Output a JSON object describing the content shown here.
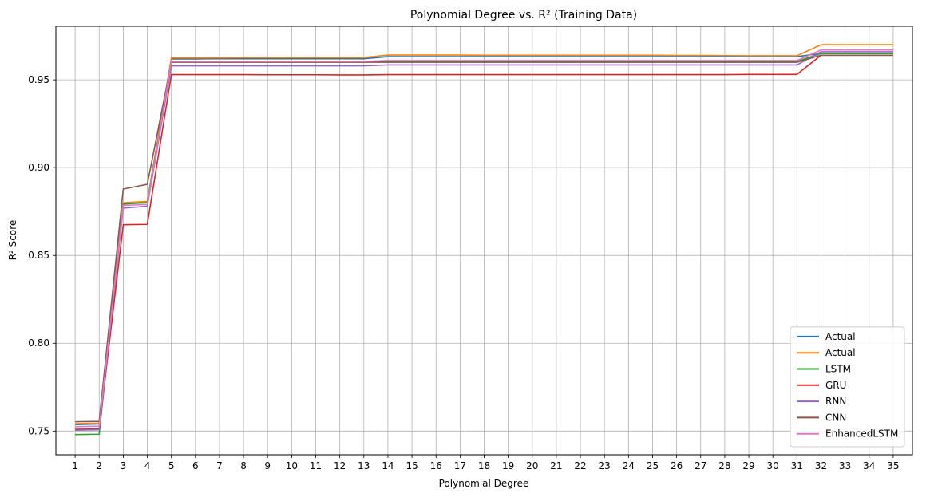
{
  "chart_data": {
    "type": "line",
    "title": "Polynomial Degree vs. R² (Training Data)",
    "xlabel": "Polynomial Degree",
    "ylabel": "R² Score",
    "x": [
      1,
      2,
      3,
      4,
      5,
      6,
      7,
      8,
      9,
      10,
      11,
      12,
      13,
      14,
      15,
      16,
      17,
      18,
      19,
      20,
      21,
      22,
      23,
      24,
      25,
      26,
      27,
      28,
      29,
      30,
      31,
      32,
      33,
      34,
      35
    ],
    "xlim": [
      0.2,
      35.8
    ],
    "ylim": [
      0.7365,
      0.9805
    ],
    "yticks": [
      0.75,
      0.8,
      0.85,
      0.9,
      0.95
    ],
    "ytick_labels": [
      "0.75",
      "0.80",
      "0.85",
      "0.90",
      "0.95"
    ],
    "grid": true,
    "legend_position": "lower-right",
    "series": [
      {
        "name": "Actual",
        "color": "#1f77b4",
        "values": [
          0.7537,
          0.754,
          0.8795,
          0.8802,
          0.9619,
          0.9619,
          0.962,
          0.962,
          0.962,
          0.962,
          0.962,
          0.962,
          0.962,
          0.9632,
          0.9632,
          0.9632,
          0.9632,
          0.9632,
          0.9632,
          0.9632,
          0.9632,
          0.9632,
          0.9632,
          0.9632,
          0.9632,
          0.9632,
          0.9632,
          0.9632,
          0.9632,
          0.9632,
          0.9632,
          0.965,
          0.965,
          0.965,
          0.965
        ]
      },
      {
        "name": "Actual",
        "color": "#ff7f0e",
        "values": [
          0.7542,
          0.7545,
          0.88,
          0.8808,
          0.9625,
          0.9625,
          0.9626,
          0.9627,
          0.9627,
          0.9627,
          0.9627,
          0.9627,
          0.9627,
          0.9641,
          0.9641,
          0.9641,
          0.9641,
          0.964,
          0.964,
          0.964,
          0.964,
          0.964,
          0.964,
          0.964,
          0.964,
          0.9639,
          0.9639,
          0.9638,
          0.9637,
          0.9637,
          0.9637,
          0.97,
          0.97,
          0.97,
          0.97
        ]
      },
      {
        "name": "LSTM",
        "color": "#2ca02c",
        "values": [
          0.748,
          0.7482,
          0.8793,
          0.88,
          0.9605,
          0.9605,
          0.9605,
          0.9605,
          0.9605,
          0.9605,
          0.9605,
          0.9605,
          0.9605,
          0.9605,
          0.9605,
          0.9605,
          0.9605,
          0.9605,
          0.9605,
          0.9605,
          0.9605,
          0.9605,
          0.9605,
          0.9605,
          0.9605,
          0.9605,
          0.9605,
          0.9605,
          0.9605,
          0.9605,
          0.9605,
          0.965,
          0.965,
          0.965,
          0.965
        ]
      },
      {
        "name": "GRU",
        "color": "#d62728",
        "values": [
          0.751,
          0.7512,
          0.8675,
          0.8677,
          0.953,
          0.953,
          0.953,
          0.953,
          0.9529,
          0.9529,
          0.9529,
          0.9528,
          0.9528,
          0.953,
          0.953,
          0.953,
          0.953,
          0.953,
          0.953,
          0.953,
          0.953,
          0.953,
          0.953,
          0.953,
          0.953,
          0.953,
          0.953,
          0.953,
          0.9531,
          0.9531,
          0.9531,
          0.964,
          0.964,
          0.964,
          0.964
        ]
      },
      {
        "name": "RNN",
        "color": "#9467bd",
        "values": [
          0.7505,
          0.7508,
          0.877,
          0.878,
          0.958,
          0.958,
          0.958,
          0.958,
          0.958,
          0.958,
          0.958,
          0.958,
          0.958,
          0.9585,
          0.9585,
          0.9585,
          0.9585,
          0.9585,
          0.9585,
          0.9585,
          0.9585,
          0.9585,
          0.9585,
          0.9585,
          0.9585,
          0.9585,
          0.9585,
          0.9585,
          0.9585,
          0.9585,
          0.9585,
          0.966,
          0.966,
          0.966,
          0.966
        ]
      },
      {
        "name": "CNN",
        "color": "#8c564b",
        "values": [
          0.7553,
          0.7555,
          0.8878,
          0.8905,
          0.96,
          0.96,
          0.96,
          0.96,
          0.96,
          0.96,
          0.96,
          0.96,
          0.96,
          0.96,
          0.96,
          0.96,
          0.96,
          0.96,
          0.96,
          0.96,
          0.96,
          0.96,
          0.96,
          0.96,
          0.96,
          0.96,
          0.96,
          0.96,
          0.96,
          0.96,
          0.96,
          0.964,
          0.964,
          0.964,
          0.964
        ]
      },
      {
        "name": "EnhancedLSTM",
        "color": "#e377c2",
        "values": [
          0.7525,
          0.7528,
          0.8785,
          0.879,
          0.9605,
          0.9605,
          0.9605,
          0.9605,
          0.9605,
          0.9605,
          0.9605,
          0.9605,
          0.9605,
          0.961,
          0.961,
          0.961,
          0.961,
          0.961,
          0.961,
          0.961,
          0.961,
          0.961,
          0.961,
          0.961,
          0.961,
          0.961,
          0.961,
          0.961,
          0.961,
          0.961,
          0.961,
          0.967,
          0.967,
          0.967,
          0.967
        ]
      }
    ]
  }
}
